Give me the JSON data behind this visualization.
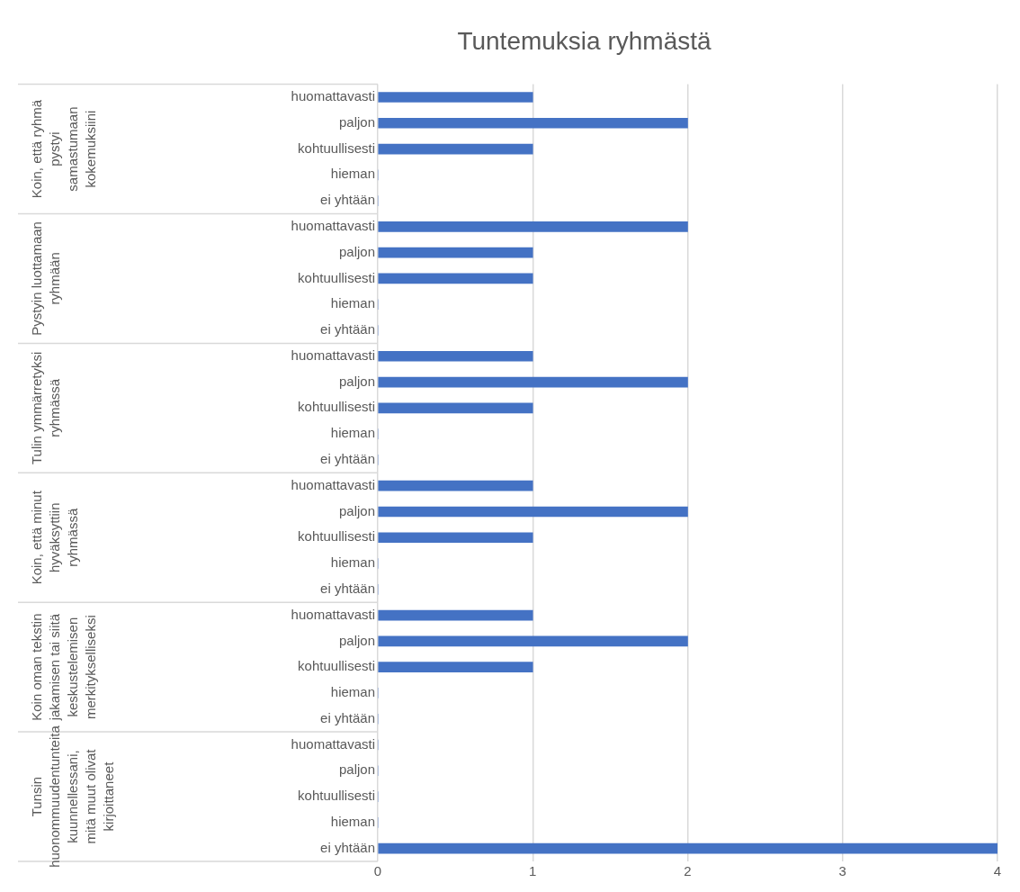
{
  "chart_data": {
    "type": "bar",
    "orientation": "horizontal",
    "title": "Tuntemuksia ryhmästä",
    "categories": [
      "huomattavasti",
      "paljon",
      "kohtuullisesti",
      "hieman",
      "ei yhtään",
      "huomattavasti",
      "paljon",
      "kohtuullisesti",
      "hieman",
      "ei yhtään",
      "huomattavasti",
      "paljon",
      "kohtuullisesti",
      "hieman",
      "ei yhtään",
      "huomattavasti",
      "paljon",
      "kohtuullisesti",
      "hieman",
      "ei yhtään",
      "huomattavasti",
      "paljon",
      "kohtuullisesti",
      "hieman",
      "ei yhtään",
      "huomattavasti",
      "paljon",
      "kohtuullisesti",
      "hieman",
      "ei yhtään"
    ],
    "values": [
      1,
      2,
      1,
      0,
      0,
      2,
      1,
      1,
      0,
      0,
      1,
      2,
      1,
      0,
      0,
      1,
      2,
      1,
      0,
      0,
      1,
      2,
      1,
      0,
      0,
      0,
      0,
      0,
      0,
      4
    ],
    "color": "#4472c4",
    "annotations": [
      "Koin, että ryhmä pystyi samastumaan kokemuksiini",
      "Pystyin luottamaan ryhmään",
      "Tulin ymmärretyksi ryhmässä",
      "Koin, että minut hyväksyttiin ryhmässä",
      "Koin oman tekstin jakamisen tai siitä keskustelemisen merkitykselliseksi",
      "Tunsin huonommuudentunteita kuunnellessani, mitä muut olivat kirjoittaneet"
    ],
    "xlim": [
      0,
      4
    ],
    "xticks": [
      0,
      1,
      2,
      3,
      4
    ],
    "grid": "x",
    "legend": false
  }
}
